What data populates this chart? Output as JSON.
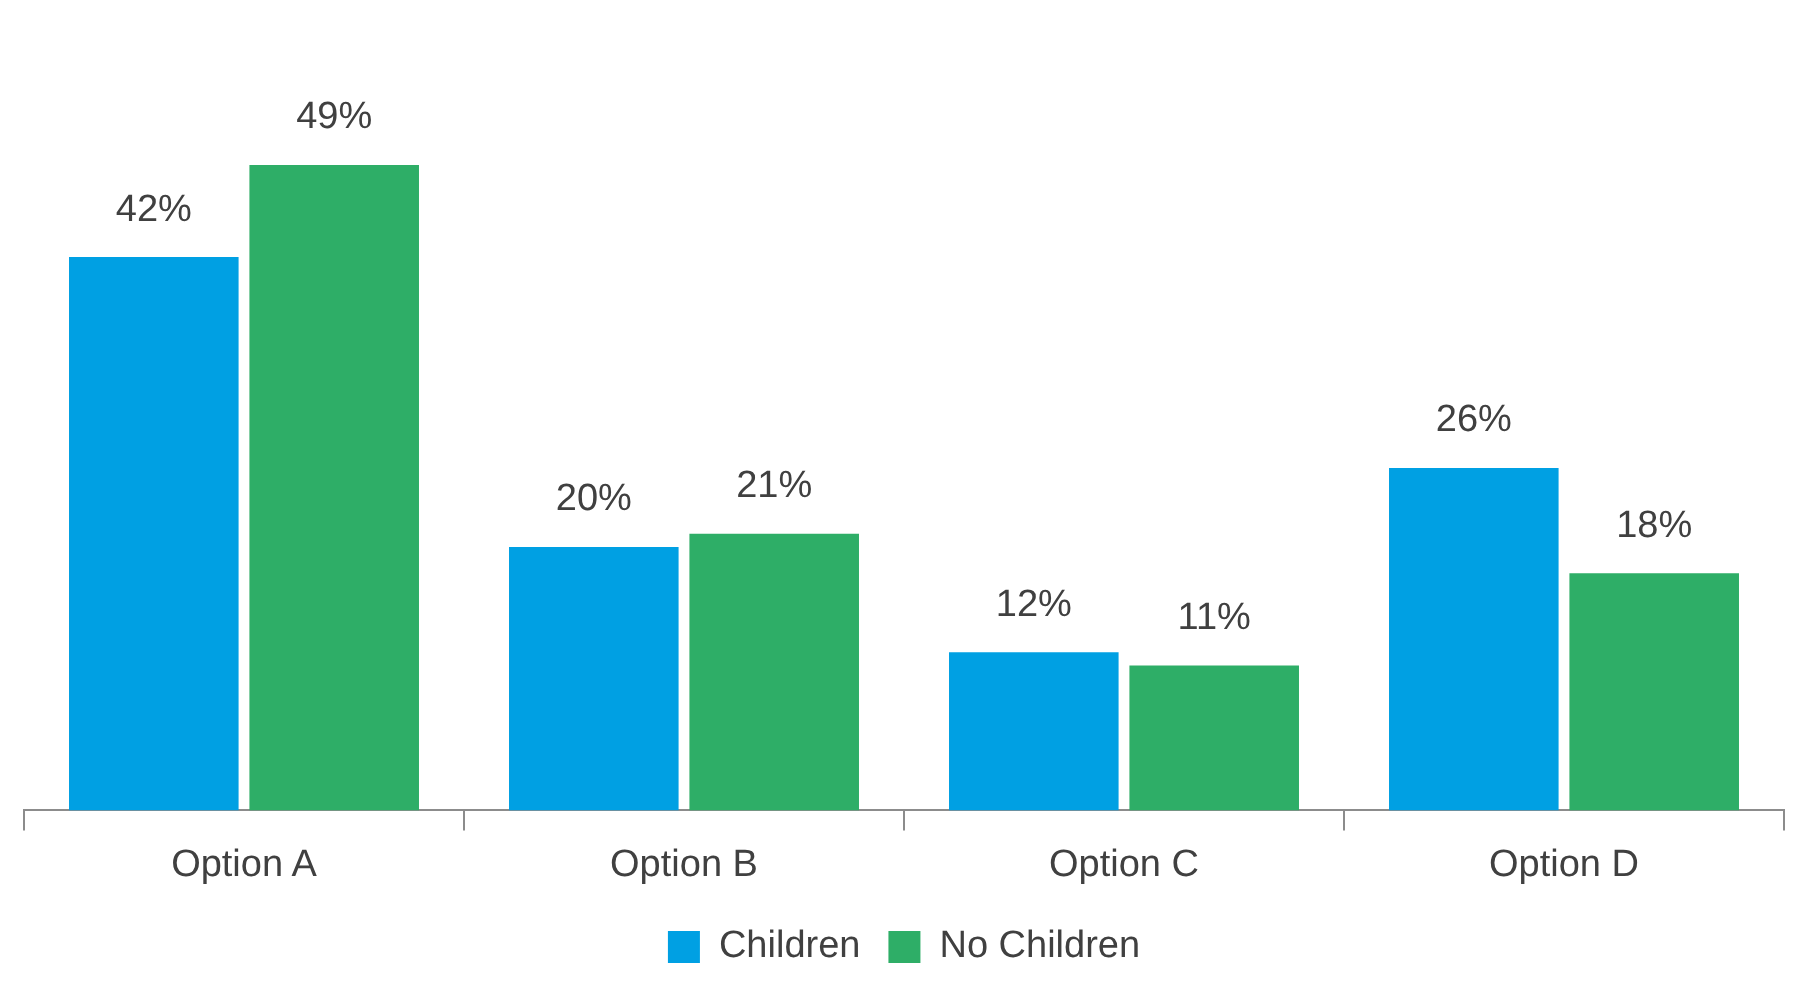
{
  "chart_data": {
    "type": "bar",
    "categories": [
      "Option A",
      "Option B",
      "Option C",
      "Option D"
    ],
    "series": [
      {
        "name": "Children",
        "color": "#00a0e3",
        "values": [
          42,
          20,
          12,
          26
        ],
        "value_labels": [
          "42%",
          "20%",
          "12%",
          "26%"
        ]
      },
      {
        "name": "No Children",
        "color": "#2eae67",
        "values": [
          49,
          21,
          11,
          18
        ],
        "value_labels": [
          "49%",
          "21%",
          "11%",
          "18%"
        ]
      }
    ],
    "legend": "bottom",
    "grid": false
  }
}
